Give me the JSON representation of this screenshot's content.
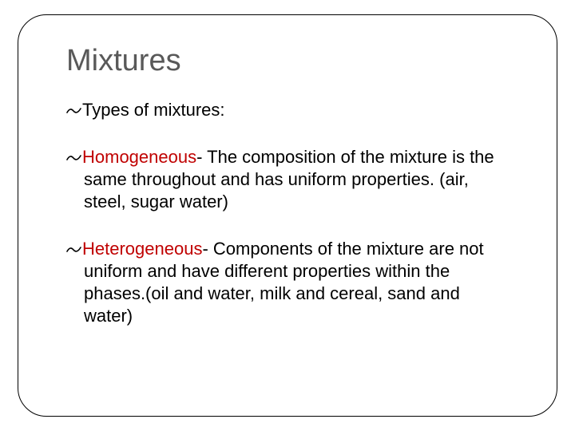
{
  "title": "Mixtures",
  "bullet_glyph": "་",
  "colors": {
    "title": "#595959",
    "border": "#000000",
    "text": "#000000",
    "term": "#c00000",
    "background": "#ffffff"
  },
  "typography": {
    "title_fontsize": 38,
    "body_fontsize": 22,
    "font_family": "Arial"
  },
  "items": [
    {
      "term": "",
      "rest": "Types of mixtures:"
    },
    {
      "term": "Homogeneous",
      "rest": "- The composition of the mixture is the same throughout and has uniform properties. (air, steel, sugar water)"
    },
    {
      "term": "Heterogeneous",
      "rest": "- Components of the mixture are not uniform and have different properties within the phases.(oil and water, milk and cereal, sand and water)"
    }
  ]
}
